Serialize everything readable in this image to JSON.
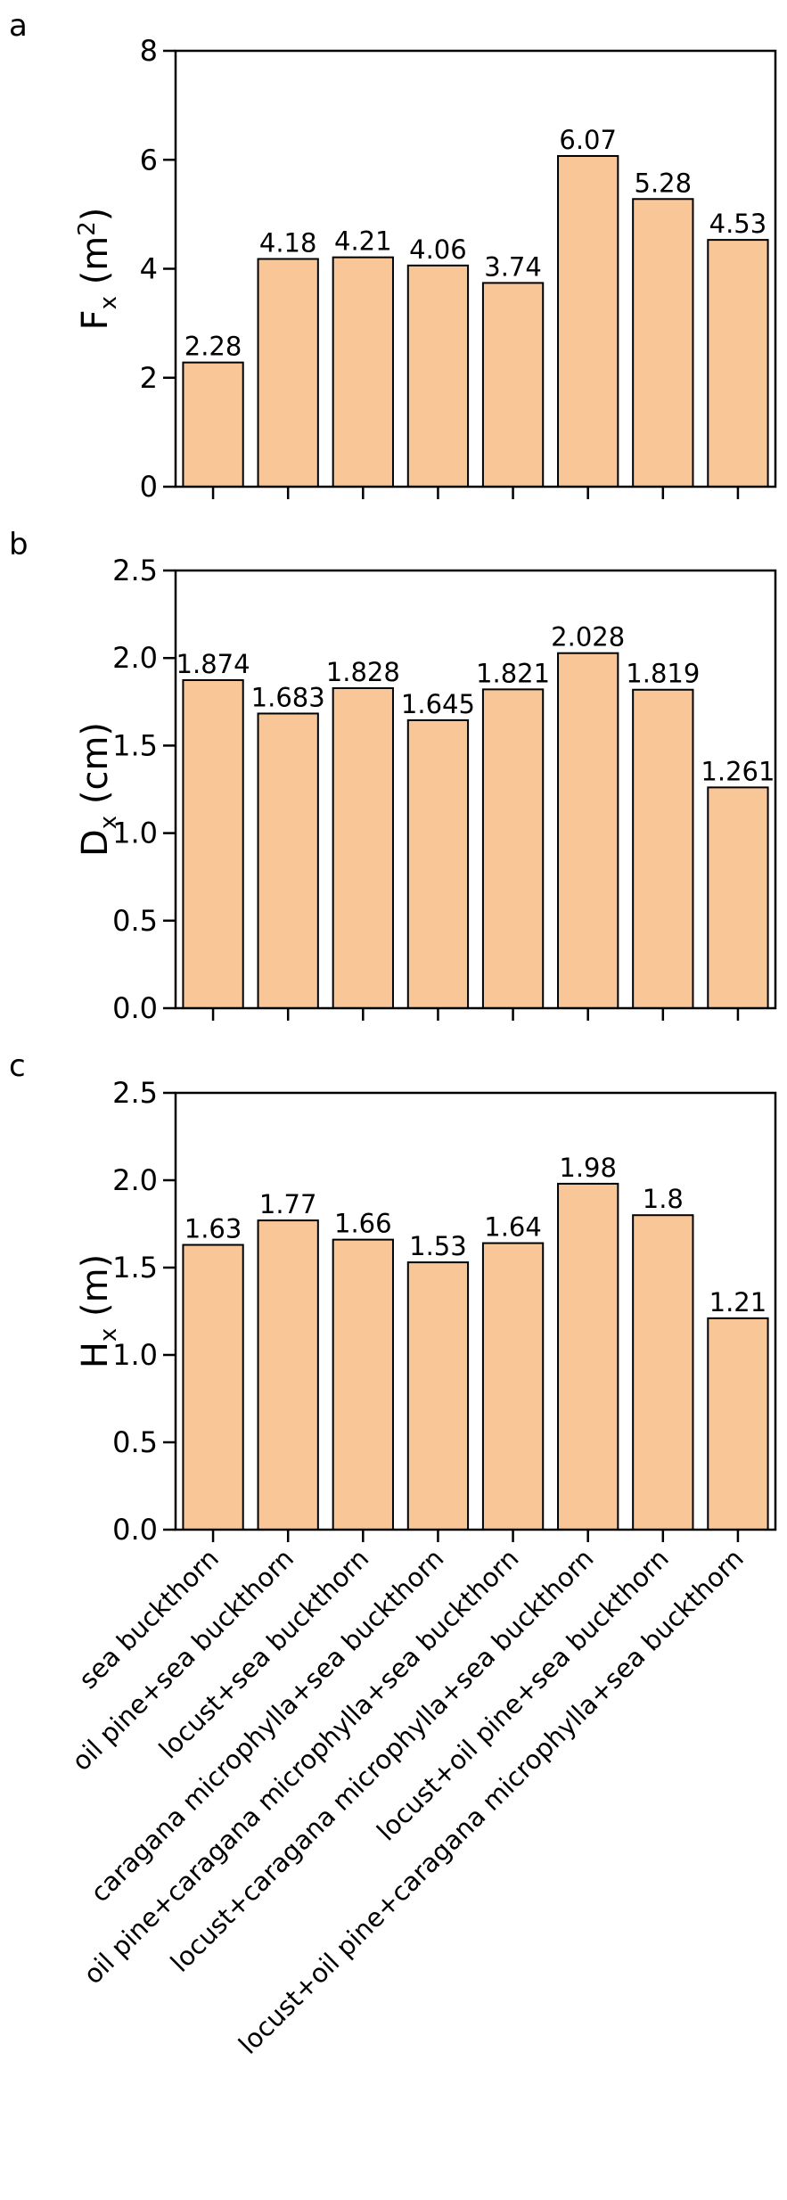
{
  "chart_data": [
    {
      "type": "bar",
      "panel": "a",
      "categories": [
        "sea buckthorn",
        "oil pine+sea buckthorn",
        "locust+sea buckthorn",
        "caragana microphylla+sea buckthorn",
        "oil pine+caragana microphylla+sea buckthorn",
        "locust+caragana microphylla+sea buckthorn",
        "locust+oil pine+sea buckthorn",
        "locust+oil pine+caragana microphylla+sea buckthorn"
      ],
      "values": [
        2.28,
        4.18,
        4.21,
        4.06,
        3.74,
        6.07,
        5.28,
        4.53
      ],
      "value_labels": [
        "2.28",
        "4.18",
        "4.21",
        "4.06",
        "3.74",
        "6.07",
        "5.28",
        "4.53"
      ],
      "ylabel": {
        "main": "F",
        "sub": "x",
        "unit_prefix": " (m",
        "unit_sup": "2",
        "unit_suffix": ")"
      },
      "ylim": [
        0,
        8
      ],
      "yticks": [
        0,
        2,
        4,
        6,
        8
      ],
      "ytick_labels": [
        "0",
        "2",
        "4",
        "6",
        "8"
      ],
      "grid": false,
      "bar_color": "#f9c698"
    },
    {
      "type": "bar",
      "panel": "b",
      "categories": [
        "sea buckthorn",
        "oil pine+sea buckthorn",
        "locust+sea buckthorn",
        "caragana microphylla+sea buckthorn",
        "oil pine+caragana microphylla+sea buckthorn",
        "locust+caragana microphylla+sea buckthorn",
        "locust+oil pine+sea buckthorn",
        "locust+oil pine+caragana microphylla+sea buckthorn"
      ],
      "values": [
        1.874,
        1.683,
        1.828,
        1.645,
        1.821,
        2.028,
        1.819,
        1.261
      ],
      "value_labels": [
        "1.874",
        "1.683",
        "1.828",
        "1.645",
        "1.821",
        "2.028",
        "1.819",
        "1.261"
      ],
      "ylabel": {
        "main": "D",
        "sub": "x",
        "unit_prefix": " (cm)",
        "unit_sup": "",
        "unit_suffix": ""
      },
      "ylim": [
        0,
        2.5
      ],
      "yticks": [
        0,
        0.5,
        1.0,
        1.5,
        2.0,
        2.5
      ],
      "ytick_labels": [
        "0.0",
        "0.5",
        "1.0",
        "1.5",
        "2.0",
        "2.5"
      ],
      "grid": false,
      "bar_color": "#f9c698"
    },
    {
      "type": "bar",
      "panel": "c",
      "categories": [
        "sea buckthorn",
        "oil pine+sea buckthorn",
        "locust+sea buckthorn",
        "caragana microphylla+sea buckthorn",
        "oil pine+caragana microphylla+sea buckthorn",
        "locust+caragana microphylla+sea buckthorn",
        "locust+oil pine+sea buckthorn",
        "locust+oil pine+caragana microphylla+sea buckthorn"
      ],
      "values": [
        1.63,
        1.77,
        1.66,
        1.53,
        1.64,
        1.98,
        1.8,
        1.21
      ],
      "value_labels": [
        "1.63",
        "1.77",
        "1.66",
        "1.53",
        "1.64",
        "1.98",
        "1.8",
        "1.21"
      ],
      "ylabel": {
        "main": "H",
        "sub": "x",
        "unit_prefix": " (m)",
        "unit_sup": "",
        "unit_suffix": ""
      },
      "ylim": [
        0,
        2.5
      ],
      "yticks": [
        0,
        0.5,
        1.0,
        1.5,
        2.0,
        2.5
      ],
      "ytick_labels": [
        "0.0",
        "0.5",
        "1.0",
        "1.5",
        "2.0",
        "2.5"
      ],
      "grid": false,
      "bar_color": "#f9c698"
    }
  ]
}
